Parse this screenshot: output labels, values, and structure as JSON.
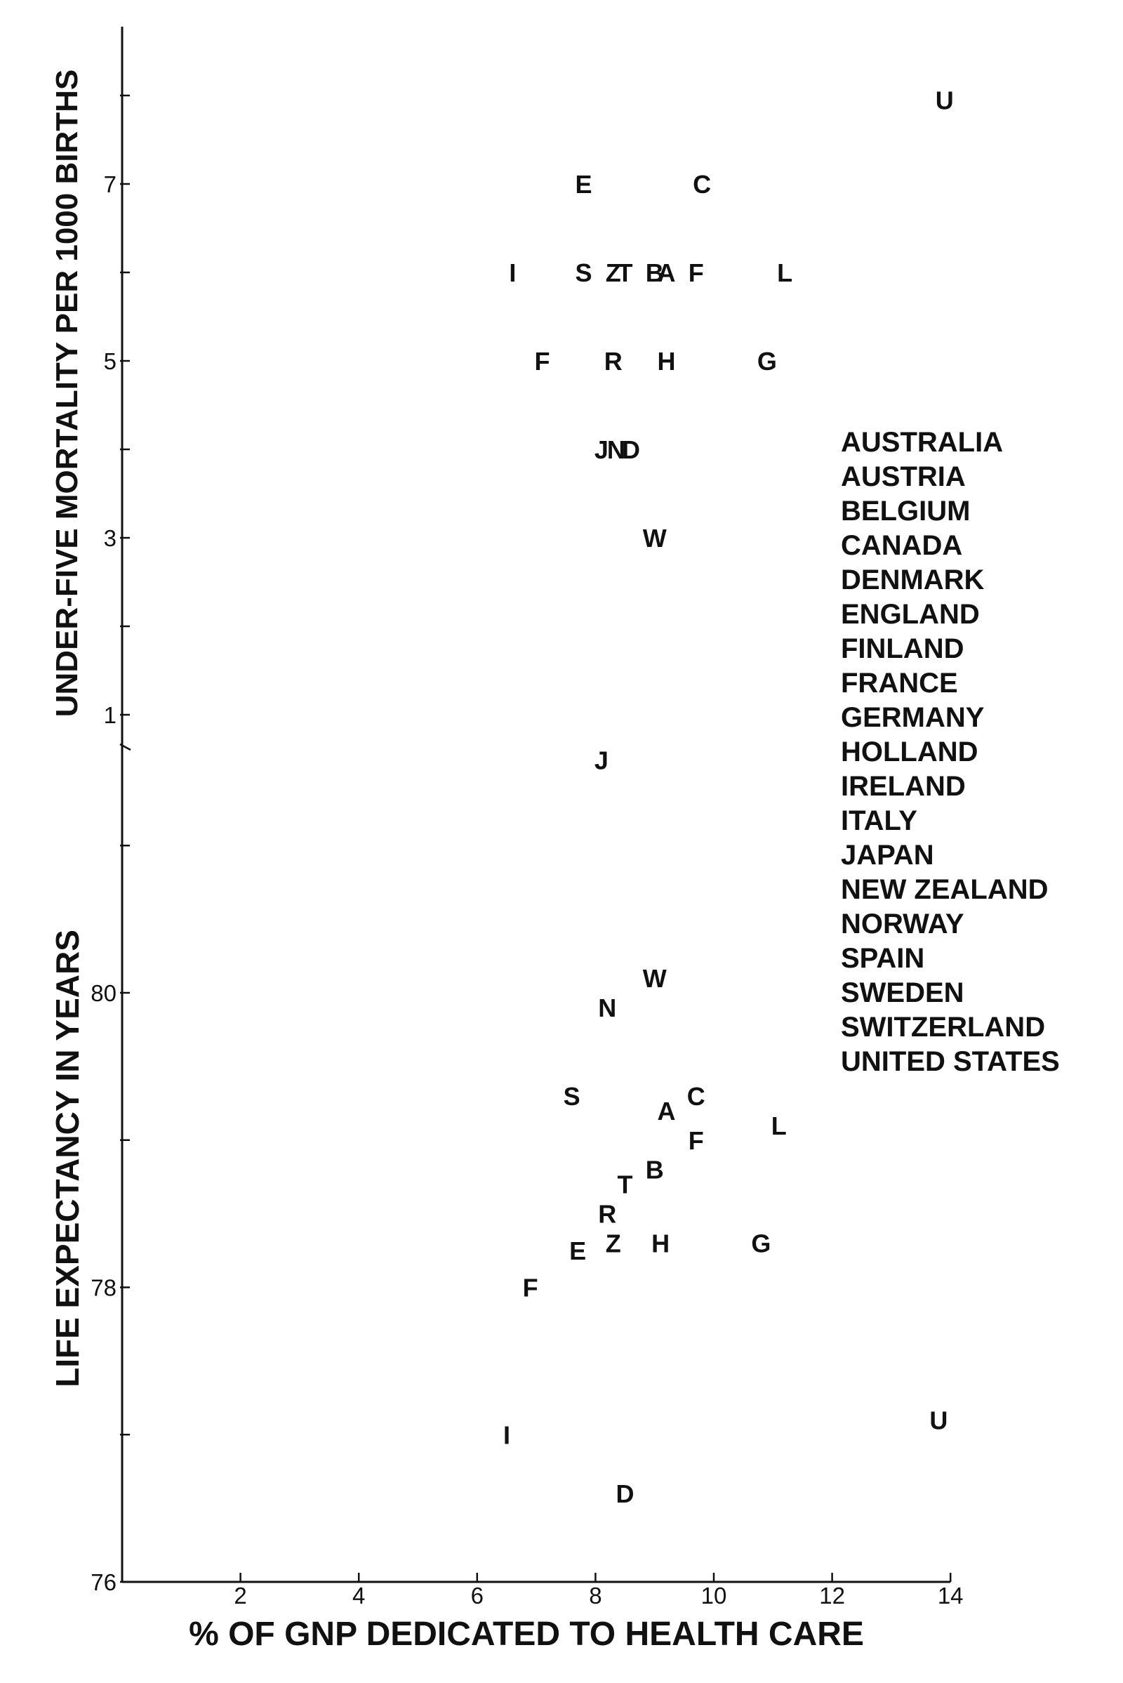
{
  "chart_data": [
    {
      "type": "scatter",
      "title": "",
      "xlabel": "% OF GNP DEDICATED TO HEALTH CARE",
      "ylabel": "UNDER-FIVE MORTALITY PER 1000 BIRTHS",
      "xlim": [
        0,
        14
      ],
      "ylim": [
        1,
        8
      ],
      "x_ticks": [
        2,
        4,
        6,
        8,
        10,
        12,
        14
      ],
      "y_ticks": [
        1,
        2,
        3,
        4,
        5,
        6,
        7,
        8
      ],
      "y_tick_labels": [
        "1",
        "3",
        "5",
        "7"
      ],
      "grid": false,
      "points": [
        {
          "label": "U",
          "x": 13.9,
          "y": 7.95
        },
        {
          "label": "E",
          "x": 7.8,
          "y": 7.0
        },
        {
          "label": "C",
          "x": 9.8,
          "y": 7.0
        },
        {
          "label": "I",
          "x": 6.6,
          "y": 6.0
        },
        {
          "label": "S",
          "x": 7.8,
          "y": 6.0
        },
        {
          "label": "Z",
          "x": 8.3,
          "y": 6.0
        },
        {
          "label": "T",
          "x": 8.5,
          "y": 6.0
        },
        {
          "label": "B",
          "x": 9.0,
          "y": 6.0
        },
        {
          "label": "A",
          "x": 9.2,
          "y": 6.0
        },
        {
          "label": "F",
          "x": 9.7,
          "y": 6.0
        },
        {
          "label": "L",
          "x": 11.2,
          "y": 6.0
        },
        {
          "label": "F",
          "x": 7.1,
          "y": 5.0
        },
        {
          "label": "R",
          "x": 8.3,
          "y": 5.0
        },
        {
          "label": "H",
          "x": 9.2,
          "y": 5.0
        },
        {
          "label": "G",
          "x": 10.9,
          "y": 5.0
        },
        {
          "label": "J",
          "x": 8.1,
          "y": 4.0
        },
        {
          "label": "N",
          "x": 8.35,
          "y": 4.0
        },
        {
          "label": "D",
          "x": 8.6,
          "y": 4.0
        },
        {
          "label": "W",
          "x": 9.0,
          "y": 3.0
        }
      ]
    },
    {
      "type": "scatter",
      "title": "",
      "xlabel": "% OF GNP DEDICATED TO HEALTH CARE",
      "ylabel": "LIFE EXPECTANCY IN YEARS",
      "xlim": [
        0,
        14
      ],
      "ylim": [
        76,
        81.8
      ],
      "x_ticks": [
        2,
        4,
        6,
        8,
        10,
        12,
        14
      ],
      "y_ticks": [
        76,
        77,
        78,
        79,
        80,
        81
      ],
      "y_tick_labels": [
        "76",
        "78",
        "80"
      ],
      "grid": false,
      "points": [
        {
          "label": "J",
          "x": 8.1,
          "y": 81.58
        },
        {
          "label": "W",
          "x": 9.0,
          "y": 80.1
        },
        {
          "label": "N",
          "x": 8.2,
          "y": 79.9
        },
        {
          "label": "S",
          "x": 7.6,
          "y": 79.3
        },
        {
          "label": "C",
          "x": 9.7,
          "y": 79.3
        },
        {
          "label": "A",
          "x": 9.2,
          "y": 79.2
        },
        {
          "label": "L",
          "x": 11.1,
          "y": 79.1
        },
        {
          "label": "F",
          "x": 9.7,
          "y": 79.0
        },
        {
          "label": "B",
          "x": 9.0,
          "y": 78.8
        },
        {
          "label": "T",
          "x": 8.5,
          "y": 78.7
        },
        {
          "label": "R",
          "x": 8.2,
          "y": 78.5
        },
        {
          "label": "Z",
          "x": 8.3,
          "y": 78.3
        },
        {
          "label": "H",
          "x": 9.1,
          "y": 78.3
        },
        {
          "label": "G",
          "x": 10.8,
          "y": 78.3
        },
        {
          "label": "E",
          "x": 7.7,
          "y": 78.25
        },
        {
          "label": "F",
          "x": 6.9,
          "y": 78.0
        },
        {
          "label": "U",
          "x": 13.8,
          "y": 77.1
        },
        {
          "label": "I",
          "x": 6.5,
          "y": 77.0
        },
        {
          "label": "D",
          "x": 8.5,
          "y": 76.6
        }
      ]
    }
  ],
  "legend": {
    "items": [
      "AUSTRALIA",
      "AUSTRIA",
      "BELGIUM",
      "CANADA",
      "DENMARK",
      "ENGLAND",
      "FINLAND",
      "FRANCE",
      "GERMANY",
      "HOLLAND",
      "IRELAND",
      "ITALY",
      "JAPAN",
      "NEW ZEALAND",
      "NORWAY",
      "SPAIN",
      "SWEDEN",
      "SWITZERLAND",
      "UNITED STATES"
    ]
  }
}
